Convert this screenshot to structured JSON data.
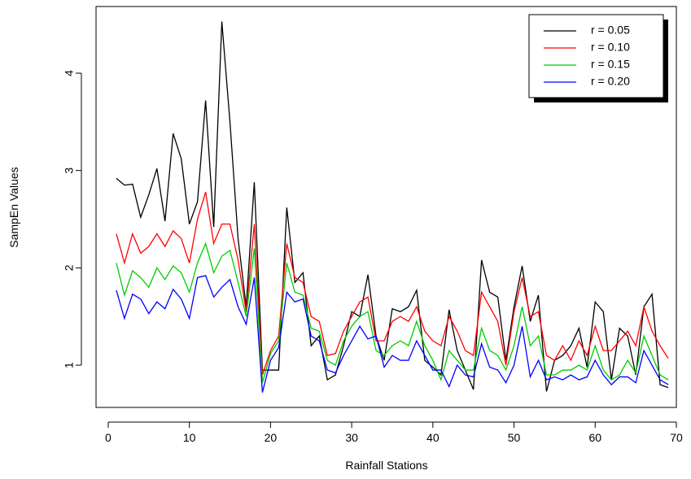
{
  "chart_data": {
    "type": "line",
    "x_label": "Rainfall Stations",
    "y_label": "SampEn Values",
    "x": [
      1,
      2,
      3,
      4,
      5,
      6,
      7,
      8,
      9,
      10,
      11,
      12,
      13,
      14,
      15,
      16,
      17,
      18,
      19,
      20,
      21,
      22,
      23,
      24,
      25,
      26,
      27,
      28,
      29,
      30,
      31,
      32,
      33,
      34,
      35,
      36,
      37,
      38,
      39,
      40,
      41,
      42,
      43,
      44,
      45,
      46,
      47,
      48,
      49,
      50,
      51,
      52,
      53,
      54,
      55,
      56,
      57,
      58,
      59,
      60,
      61,
      62,
      63,
      64,
      65,
      66,
      67,
      68,
      69
    ],
    "series": [
      {
        "name": "r = 0.05",
        "color": "#000000",
        "values": [
          2.92,
          2.85,
          2.86,
          2.52,
          2.75,
          3.02,
          2.48,
          3.38,
          3.12,
          2.45,
          2.68,
          3.72,
          2.42,
          4.53,
          3.5,
          2.3,
          1.6,
          2.88,
          0.95,
          0.95,
          0.95,
          2.62,
          1.85,
          1.95,
          1.2,
          1.3,
          0.85,
          0.9,
          1.2,
          1.55,
          1.5,
          1.93,
          1.3,
          1.05,
          1.58,
          1.55,
          1.6,
          1.77,
          1.05,
          0.98,
          0.9,
          1.57,
          1.15,
          0.95,
          0.75,
          2.08,
          1.75,
          1.7,
          1.05,
          1.6,
          2.02,
          1.45,
          1.72,
          0.73,
          1.05,
          1.1,
          1.2,
          1.38,
          0.98,
          1.65,
          1.55,
          0.85,
          1.38,
          1.3,
          0.9,
          1.6,
          1.73,
          0.8,
          0.77
        ]
      },
      {
        "name": "r = 0.10",
        "color": "#ff0000",
        "values": [
          2.35,
          2.05,
          2.35,
          2.15,
          2.22,
          2.35,
          2.22,
          2.38,
          2.3,
          2.05,
          2.5,
          2.78,
          2.25,
          2.45,
          2.45,
          2.08,
          1.55,
          2.45,
          0.9,
          1.15,
          1.3,
          2.25,
          1.9,
          1.85,
          1.5,
          1.45,
          1.1,
          1.12,
          1.35,
          1.5,
          1.65,
          1.7,
          1.25,
          1.25,
          1.45,
          1.5,
          1.45,
          1.6,
          1.35,
          1.25,
          1.2,
          1.5,
          1.35,
          1.15,
          1.1,
          1.75,
          1.6,
          1.45,
          1.0,
          1.55,
          1.9,
          1.5,
          1.55,
          1.1,
          1.05,
          1.2,
          1.05,
          1.25,
          1.1,
          1.4,
          1.15,
          1.15,
          1.25,
          1.35,
          1.2,
          1.6,
          1.35,
          1.2,
          1.07
        ]
      },
      {
        "name": "r = 0.15",
        "color": "#00cc00",
        "values": [
          2.05,
          1.72,
          1.97,
          1.9,
          1.8,
          2.0,
          1.88,
          2.02,
          1.95,
          1.75,
          2.05,
          2.25,
          1.95,
          2.12,
          2.18,
          1.85,
          1.5,
          2.2,
          0.82,
          1.12,
          1.25,
          2.05,
          1.75,
          1.72,
          1.38,
          1.35,
          1.05,
          1.0,
          1.25,
          1.4,
          1.5,
          1.55,
          1.15,
          1.1,
          1.2,
          1.25,
          1.2,
          1.45,
          1.2,
          1.05,
          0.85,
          1.15,
          1.05,
          0.95,
          0.95,
          1.38,
          1.15,
          1.1,
          0.95,
          1.2,
          1.6,
          1.2,
          1.3,
          0.9,
          0.9,
          0.95,
          0.95,
          1.0,
          0.95,
          1.2,
          0.95,
          0.85,
          0.9,
          1.05,
          0.92,
          1.3,
          1.1,
          0.9,
          0.85
        ]
      },
      {
        "name": "r = 0.20",
        "color": "#0000ff",
        "values": [
          1.77,
          1.48,
          1.73,
          1.68,
          1.53,
          1.65,
          1.58,
          1.78,
          1.68,
          1.48,
          1.9,
          1.92,
          1.7,
          1.8,
          1.88,
          1.6,
          1.42,
          1.9,
          0.72,
          1.05,
          1.18,
          1.75,
          1.65,
          1.68,
          1.3,
          1.25,
          0.95,
          0.92,
          1.1,
          1.25,
          1.4,
          1.27,
          1.3,
          0.98,
          1.1,
          1.05,
          1.05,
          1.25,
          1.1,
          0.95,
          0.95,
          0.78,
          1.0,
          0.9,
          0.88,
          1.22,
          0.98,
          0.95,
          0.82,
          1.0,
          1.4,
          0.88,
          1.05,
          0.85,
          0.88,
          0.85,
          0.9,
          0.85,
          0.88,
          1.05,
          0.9,
          0.8,
          0.88,
          0.88,
          0.82,
          1.15,
          1.0,
          0.85,
          0.8
        ]
      }
    ],
    "xlim": [
      -1.5,
      70
    ],
    "ylim": [
      0.566,
      4.685
    ],
    "xticks": [
      0,
      10,
      20,
      30,
      40,
      50,
      60,
      70
    ],
    "yticks": [
      1,
      2,
      3,
      4
    ],
    "grid": false,
    "legend": "top-right"
  }
}
